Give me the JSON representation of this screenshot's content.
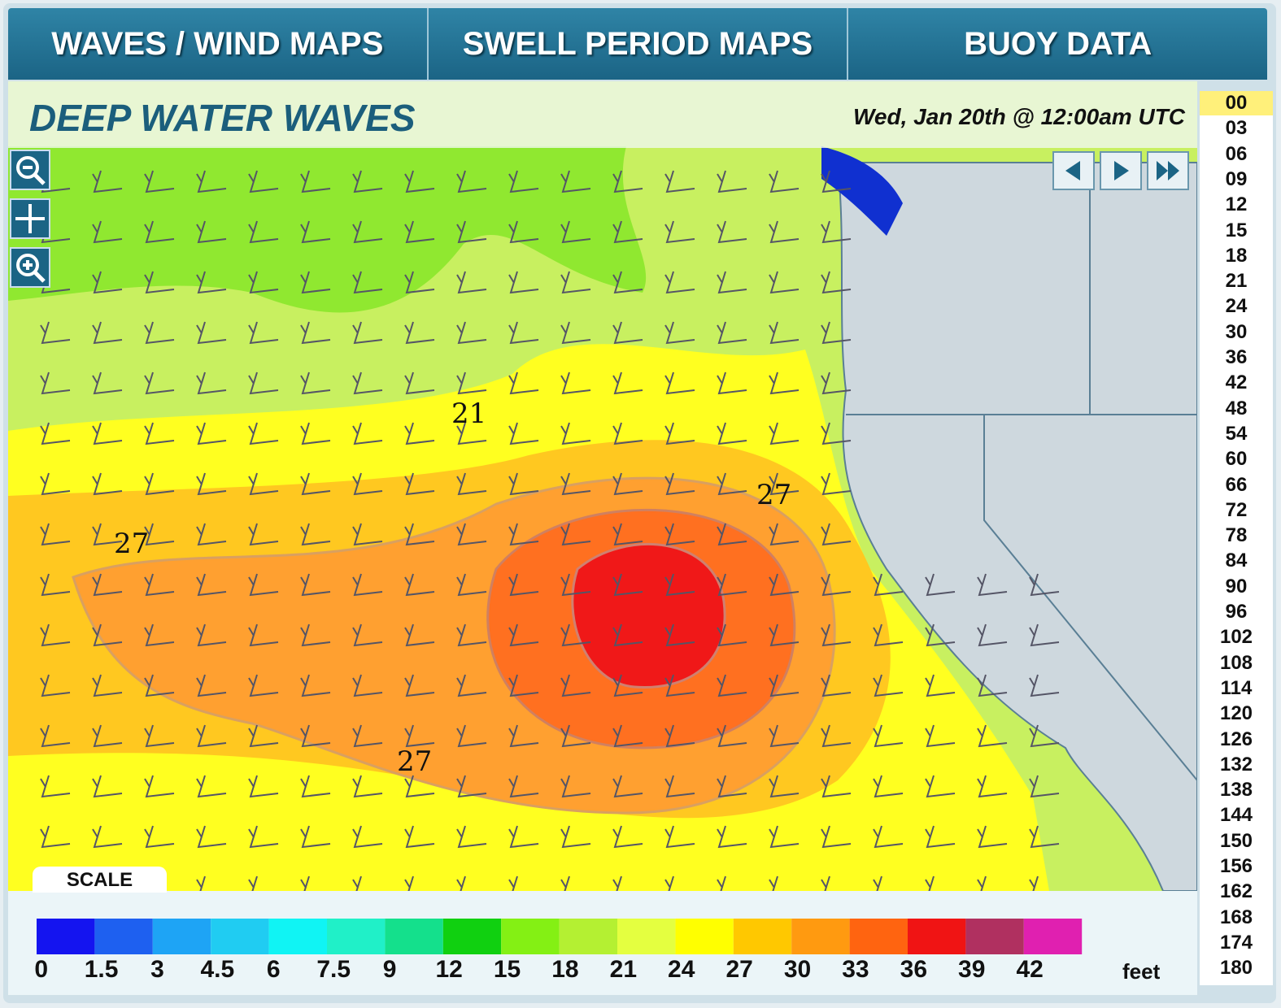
{
  "nav": [
    "WAVES / WIND MAPS",
    "SWELL PERIOD MAPS",
    "BUOY DATA"
  ],
  "title": "DEEP WATER WAVES",
  "timestamp": "Wed, Jan 20th @ 12:00am UTC",
  "hours": [
    "00",
    "03",
    "06",
    "09",
    "12",
    "15",
    "18",
    "21",
    "24",
    "30",
    "36",
    "42",
    "48",
    "54",
    "60",
    "66",
    "72",
    "78",
    "84",
    "90",
    "96",
    "102",
    "108",
    "114",
    "120",
    "126",
    "132",
    "138",
    "144",
    "150",
    "156",
    "162",
    "168",
    "174",
    "180"
  ],
  "contour_labels": [
    "21",
    "27",
    "27",
    "27"
  ],
  "scale": {
    "label": "SCALE",
    "unit": "feet",
    "ticks": [
      "0",
      "1.5",
      "3",
      "4.5",
      "6",
      "7.5",
      "9",
      "12",
      "15",
      "18",
      "21",
      "24",
      "27",
      "30",
      "33",
      "36",
      "39",
      "42"
    ],
    "colors": [
      "#1414f0",
      "#1e60f0",
      "#1ea4f5",
      "#20ccf2",
      "#10f4f4",
      "#20f0c8",
      "#14e08c",
      "#10d010",
      "#84f014",
      "#b4f032",
      "#e4ff40",
      "#ffff00",
      "#ffc800",
      "#ff9a10",
      "#ff6410",
      "#f01414",
      "#b03060",
      "#e020b0",
      "#ff20ff"
    ]
  }
}
